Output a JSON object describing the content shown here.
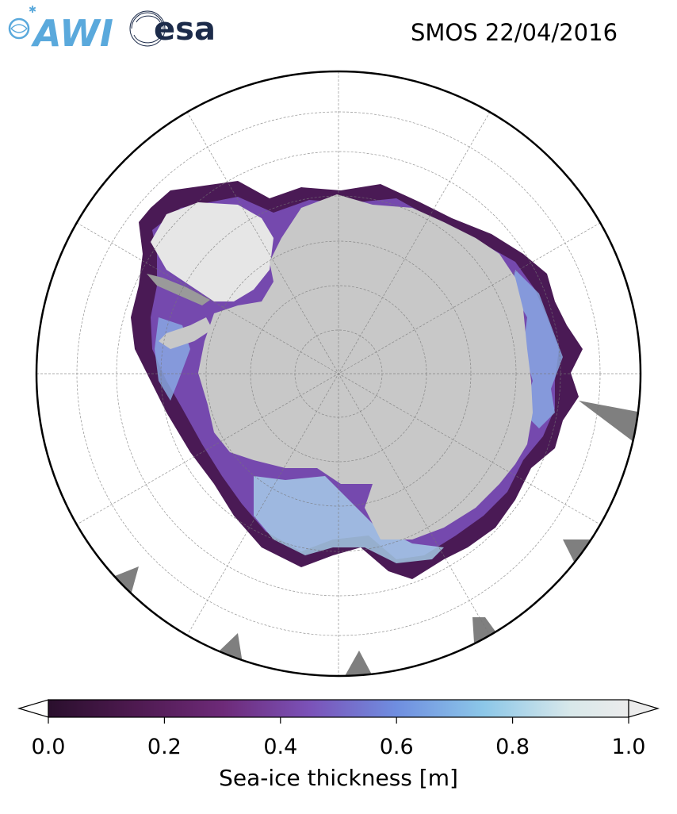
{
  "title": "SMOS 22/04/2016",
  "logos": {
    "awi": {
      "text": "AWI",
      "color": "#5aa9dc"
    },
    "esa": {
      "text": "esa",
      "color": "#1c2b4a"
    }
  },
  "map": {
    "projection": "south-polar-stereographic",
    "ocean_color": "#ffffff",
    "land_color": "#c8c8c8",
    "ice_shelf_color": "#e8e8e8",
    "missing_data_color": "#7f7f7f",
    "graticule": true
  },
  "colorbar": {
    "label": "Sea-ice thickness [m]",
    "vmin": 0.0,
    "vmax": 1.0,
    "ticks": [
      "0.0",
      "0.2",
      "0.4",
      "0.6",
      "0.8",
      "1.0"
    ],
    "extend": "both",
    "colors": [
      "#2a0f2d",
      "#4e1a50",
      "#6d2a78",
      "#7b52b8",
      "#6f8ee0",
      "#8cc7e8",
      "#d8e8ea",
      "#ececec"
    ]
  }
}
